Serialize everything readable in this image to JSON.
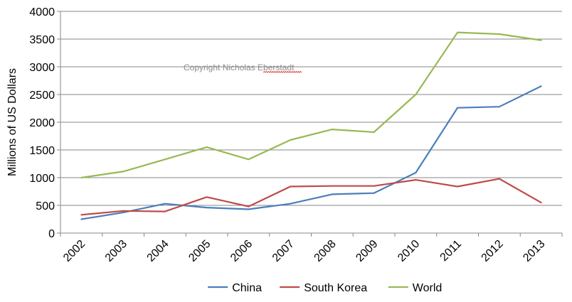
{
  "chart_data": {
    "type": "line",
    "title": "",
    "xlabel": "",
    "ylabel": "Millions of US Dollars",
    "ylim": [
      0,
      4000
    ],
    "y_ticks": [
      0,
      500,
      1000,
      1500,
      2000,
      2500,
      3000,
      3500,
      4000
    ],
    "y_tick_labels": [
      "0",
      "500",
      "1000",
      "1500",
      "2000",
      "2500",
      "3000",
      "3500",
      "4000"
    ],
    "grid": true,
    "legend": "bottom",
    "categories": [
      "2002",
      "2003",
      "2004",
      "2005",
      "2006",
      "2007",
      "2008",
      "2009",
      "2010",
      "2011",
      "2012",
      "2013"
    ],
    "series": [
      {
        "name": "China",
        "color": "#4a7ebb",
        "values": [
          250,
          370,
          530,
          460,
          430,
          530,
          700,
          720,
          1090,
          2260,
          2280,
          2650
        ]
      },
      {
        "name": "South Korea",
        "color": "#be4b48",
        "values": [
          330,
          400,
          390,
          650,
          480,
          840,
          850,
          850,
          960,
          840,
          980,
          550
        ]
      },
      {
        "name": "World",
        "color": "#98b954",
        "values": [
          1000,
          1110,
          1330,
          1550,
          1330,
          1680,
          1870,
          1820,
          2500,
          3620,
          3590,
          3480
        ]
      }
    ],
    "annotation": "Copyright Nicholas Eberstadt"
  }
}
